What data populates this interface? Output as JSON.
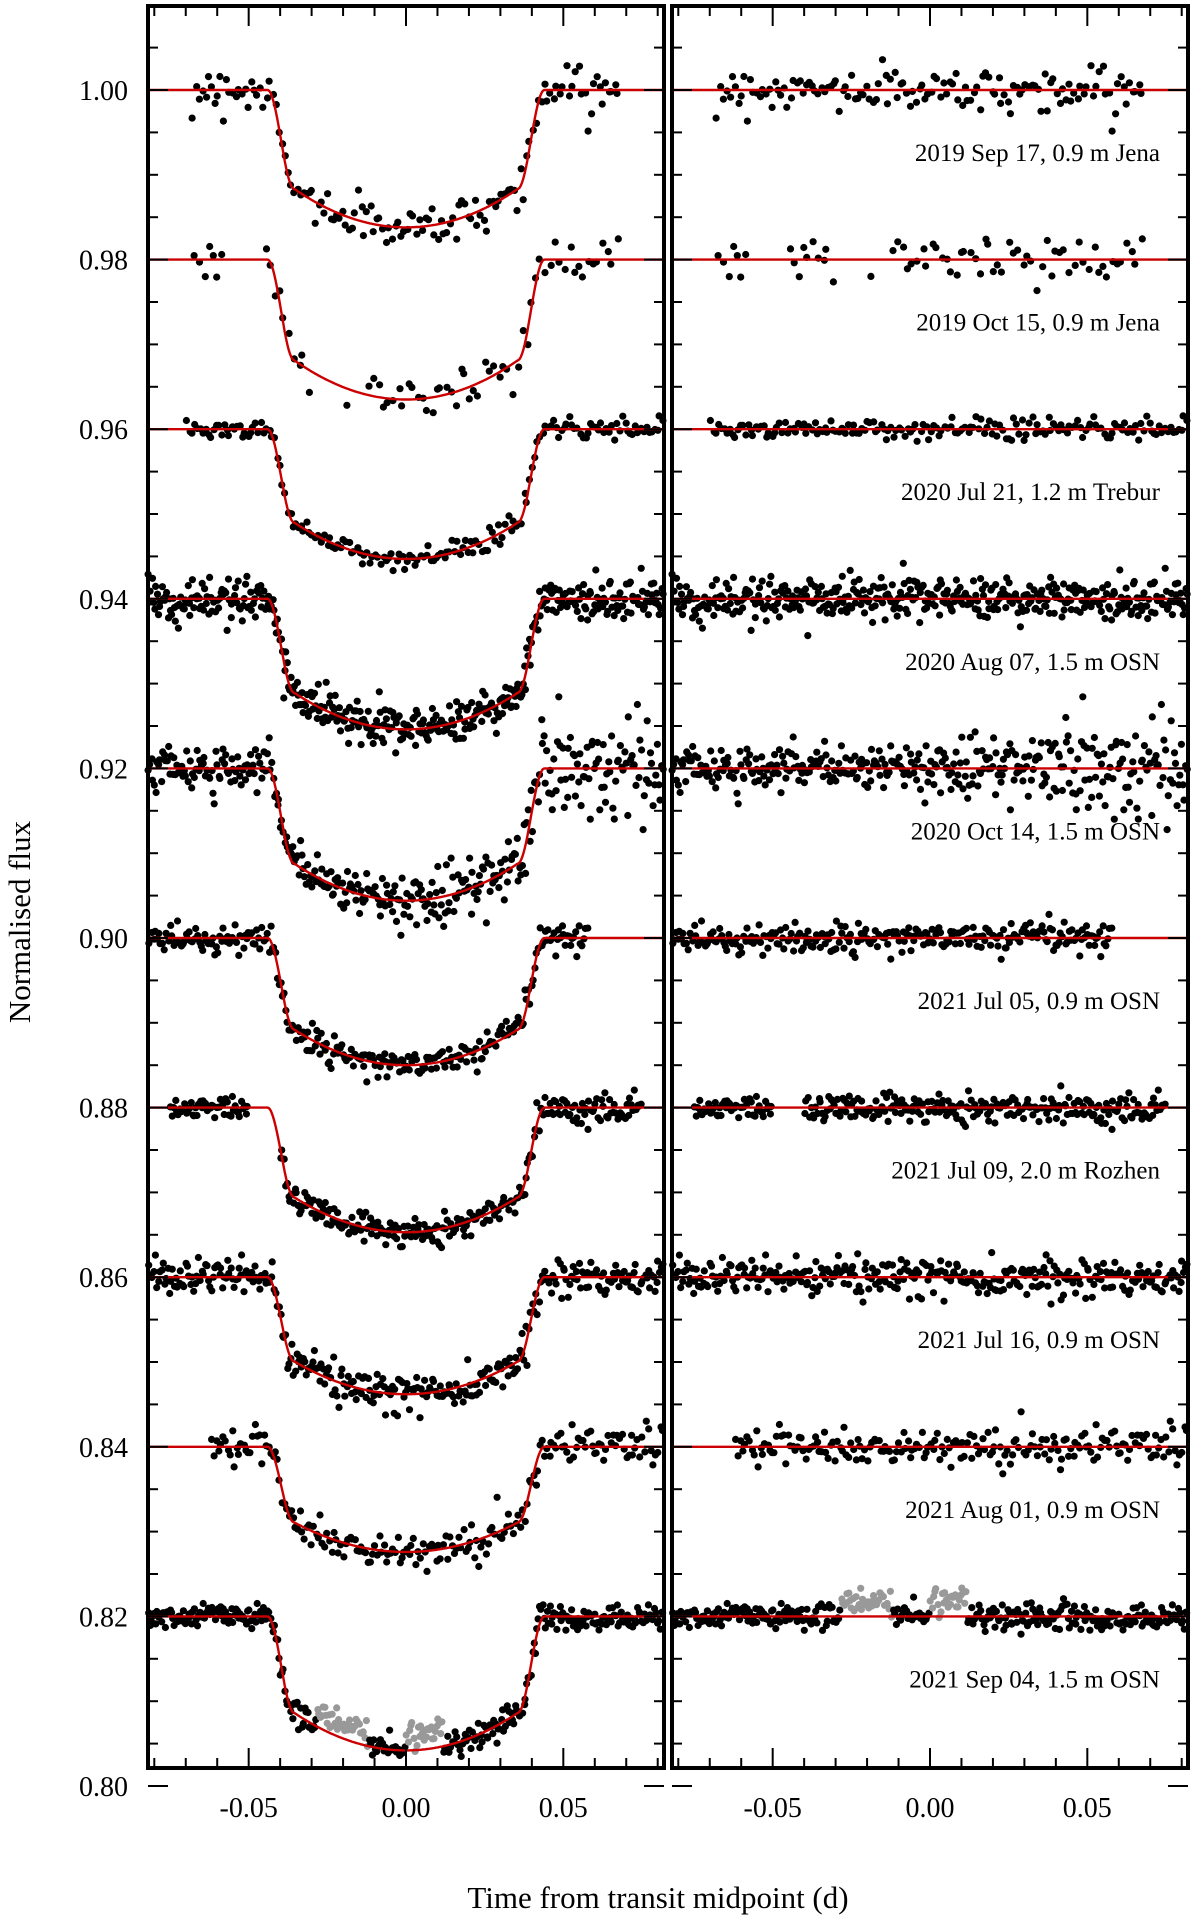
{
  "chart_data": {
    "type": "scatter",
    "description_panels": [
      "light curves with transit model",
      "residuals"
    ],
    "xlabel": "Time from transit midpoint (d)",
    "ylabel": "Normalised flux",
    "xlim": [
      -0.082,
      0.082
    ],
    "ylim": [
      0.7976,
      1.0103
    ],
    "x_ticks": [
      -0.05,
      0.0,
      0.05
    ],
    "x_tick_labels": [
      "-0.05",
      "0.00",
      "0.05"
    ],
    "y_ticks": [
      1.0,
      0.98,
      0.96,
      0.94,
      0.92,
      0.9,
      0.88,
      0.86,
      0.84,
      0.82,
      0.8
    ],
    "y_tick_labels": [
      "1.00",
      "0.98",
      "0.96",
      "0.94",
      "0.92",
      "0.90",
      "0.88",
      "0.86",
      "0.84",
      "0.82",
      "0.80"
    ],
    "transit": {
      "depth": 0.0157,
      "t14": 0.088,
      "t12": 0.0085
    },
    "colors": {
      "model": "#cc0000",
      "data": "#000000",
      "excluded": "#999999"
    },
    "series": [
      {
        "label": "2019 Sep 17, 0.9 m Jena",
        "baseline": 1.0,
        "depth": 0.0162,
        "n": 140,
        "scatter": 0.0012,
        "obs_start": -0.068,
        "obs_end": 0.068,
        "gaps": []
      },
      {
        "label": "2019 Oct 15, 0.9 m Jena",
        "baseline": 0.98,
        "depth": 0.0165,
        "n": 90,
        "scatter": 0.0017,
        "obs_start": -0.068,
        "obs_end": 0.068,
        "gaps": [
          [
            -0.058,
            -0.045
          ],
          [
            -0.018,
            -0.012
          ],
          [
            -0.03,
            -0.02
          ]
        ]
      },
      {
        "label": "2020 Jul 21, 1.2 m Trebur",
        "baseline": 0.96,
        "depth": 0.0153,
        "n": 180,
        "scatter": 0.0006,
        "obs_start": -0.07,
        "obs_end": 0.082,
        "gaps": []
      },
      {
        "label": "2020 Aug 07, 1.5 m OSN",
        "baseline": 0.94,
        "depth": 0.0154,
        "n": 420,
        "scatter": 0.0012,
        "obs_start": -0.082,
        "obs_end": 0.082,
        "gaps": []
      },
      {
        "label": "2020 Oct 14, 1.5 m OSN",
        "baseline": 0.92,
        "depth": 0.0156,
        "n": 360,
        "scatter": 0.0014,
        "obs_start": -0.082,
        "obs_end": 0.082,
        "gaps": []
      },
      {
        "label": "2021 Jul 05, 0.9 m OSN",
        "baseline": 0.9,
        "depth": 0.015,
        "n": 260,
        "scatter": 0.0009,
        "obs_start": -0.082,
        "obs_end": 0.058,
        "gaps": []
      },
      {
        "label": "2021 Jul 09, 2.0 m Rozhen",
        "baseline": 0.88,
        "depth": 0.0147,
        "n": 300,
        "scatter": 0.0008,
        "obs_start": -0.075,
        "obs_end": 0.075,
        "gaps": [
          [
            -0.05,
            -0.04
          ]
        ]
      },
      {
        "label": "2021 Jul 16, 0.9 m OSN",
        "baseline": 0.86,
        "depth": 0.0138,
        "n": 320,
        "scatter": 0.0011,
        "obs_start": -0.082,
        "obs_end": 0.082,
        "gaps": []
      },
      {
        "label": "2021 Aug 01, 0.9 m OSN",
        "baseline": 0.84,
        "depth": 0.0124,
        "n": 200,
        "scatter": 0.0011,
        "obs_start": -0.062,
        "obs_end": 0.082,
        "gaps": []
      },
      {
        "label": "2021 Sep 04, 1.5 m OSN",
        "baseline": 0.82,
        "depth": 0.0158,
        "n": 360,
        "scatter": 0.0008,
        "obs_start": -0.082,
        "obs_end": 0.082,
        "gaps": [],
        "excluded_ranges": [
          [
            -0.028,
            -0.012
          ],
          [
            0.0,
            0.012
          ]
        ]
      }
    ]
  }
}
